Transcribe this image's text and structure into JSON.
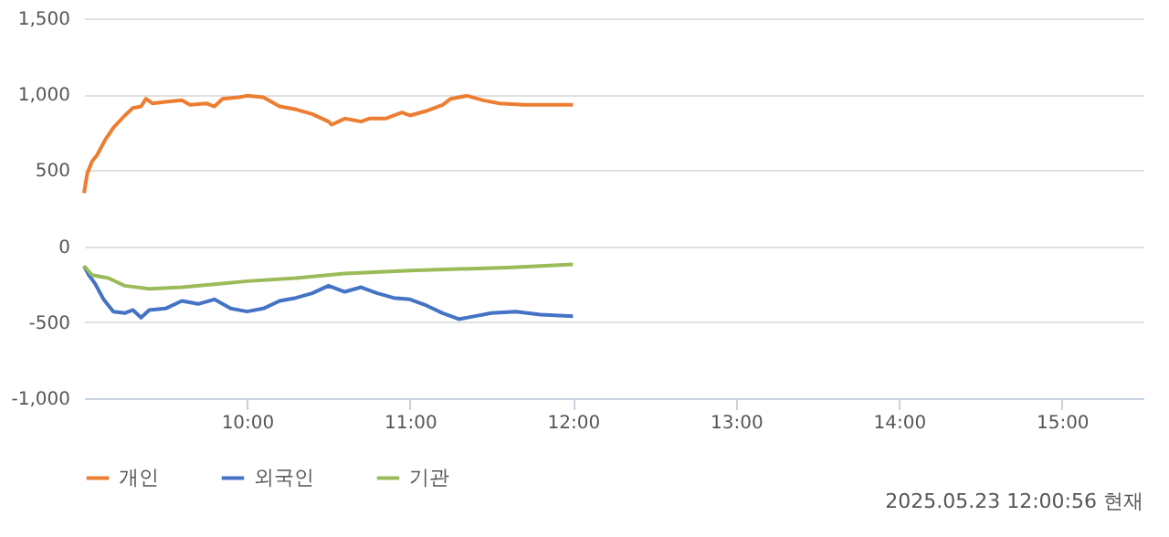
{
  "chart_data": {
    "type": "line",
    "xlim": [
      9,
      15.5
    ],
    "xticks": [
      {
        "value": 10,
        "label": "10:00"
      },
      {
        "value": 11,
        "label": "11:00"
      },
      {
        "value": 12,
        "label": "12:00"
      },
      {
        "value": 13,
        "label": "13:00"
      },
      {
        "value": 14,
        "label": "14:00"
      },
      {
        "value": 15,
        "label": "15:00"
      }
    ],
    "ylim": [
      -1000,
      1500
    ],
    "yticks": [
      {
        "value": -1000,
        "label": "-1,000"
      },
      {
        "value": -500,
        "label": "-500"
      },
      {
        "value": 0,
        "label": "0"
      },
      {
        "value": 500,
        "label": "500"
      },
      {
        "value": 1000,
        "label": "1,000"
      },
      {
        "value": 1500,
        "label": "1,500"
      }
    ],
    "grid": "y",
    "legend": "bottom",
    "marker": "none",
    "line_style": "solid",
    "annotations": [
      "2025.05.23 12:00:56 현재"
    ],
    "series": [
      {
        "name": "개인",
        "color": "#ed7d31",
        "x": [
          9.0,
          9.02,
          9.05,
          9.08,
          9.13,
          9.18,
          9.25,
          9.3,
          9.35,
          9.38,
          9.42,
          9.5,
          9.6,
          9.65,
          9.75,
          9.8,
          9.85,
          9.95,
          10.0,
          10.1,
          10.2,
          10.3,
          10.4,
          10.5,
          10.52,
          10.6,
          10.7,
          10.75,
          10.85,
          10.95,
          11.0,
          11.1,
          11.2,
          11.25,
          11.35,
          11.45,
          11.55,
          11.7,
          11.85,
          12.0
        ],
        "values": [
          350,
          480,
          560,
          600,
          700,
          780,
          860,
          910,
          920,
          970,
          940,
          950,
          960,
          930,
          940,
          920,
          970,
          980,
          990,
          980,
          920,
          900,
          870,
          820,
          800,
          840,
          820,
          840,
          840,
          880,
          860,
          890,
          930,
          970,
          990,
          960,
          940,
          930,
          930,
          930
        ]
      },
      {
        "name": "외국인",
        "color": "#4472c4",
        "x": [
          9.0,
          9.03,
          9.07,
          9.12,
          9.18,
          9.25,
          9.3,
          9.35,
          9.4,
          9.5,
          9.6,
          9.7,
          9.8,
          9.9,
          10.0,
          10.1,
          10.2,
          10.3,
          10.4,
          10.5,
          10.6,
          10.7,
          10.8,
          10.9,
          11.0,
          11.1,
          11.2,
          11.3,
          11.4,
          11.5,
          11.65,
          11.8,
          12.0
        ],
        "values": [
          -130,
          -190,
          -250,
          -350,
          -430,
          -440,
          -420,
          -470,
          -420,
          -410,
          -360,
          -380,
          -350,
          -410,
          -430,
          -410,
          -360,
          -340,
          -310,
          -260,
          -300,
          -270,
          -310,
          -340,
          -350,
          -390,
          -440,
          -480,
          -460,
          -440,
          -430,
          -450,
          -460
        ]
      },
      {
        "name": "기관",
        "color": "#9bbb59",
        "x": [
          9.0,
          9.05,
          9.15,
          9.25,
          9.4,
          9.6,
          9.8,
          10.0,
          10.3,
          10.6,
          11.0,
          11.3,
          11.6,
          12.0
        ],
        "values": [
          -130,
          -190,
          -210,
          -260,
          -280,
          -270,
          -250,
          -230,
          -210,
          -180,
          -160,
          -150,
          -140,
          -120
        ]
      }
    ]
  }
}
